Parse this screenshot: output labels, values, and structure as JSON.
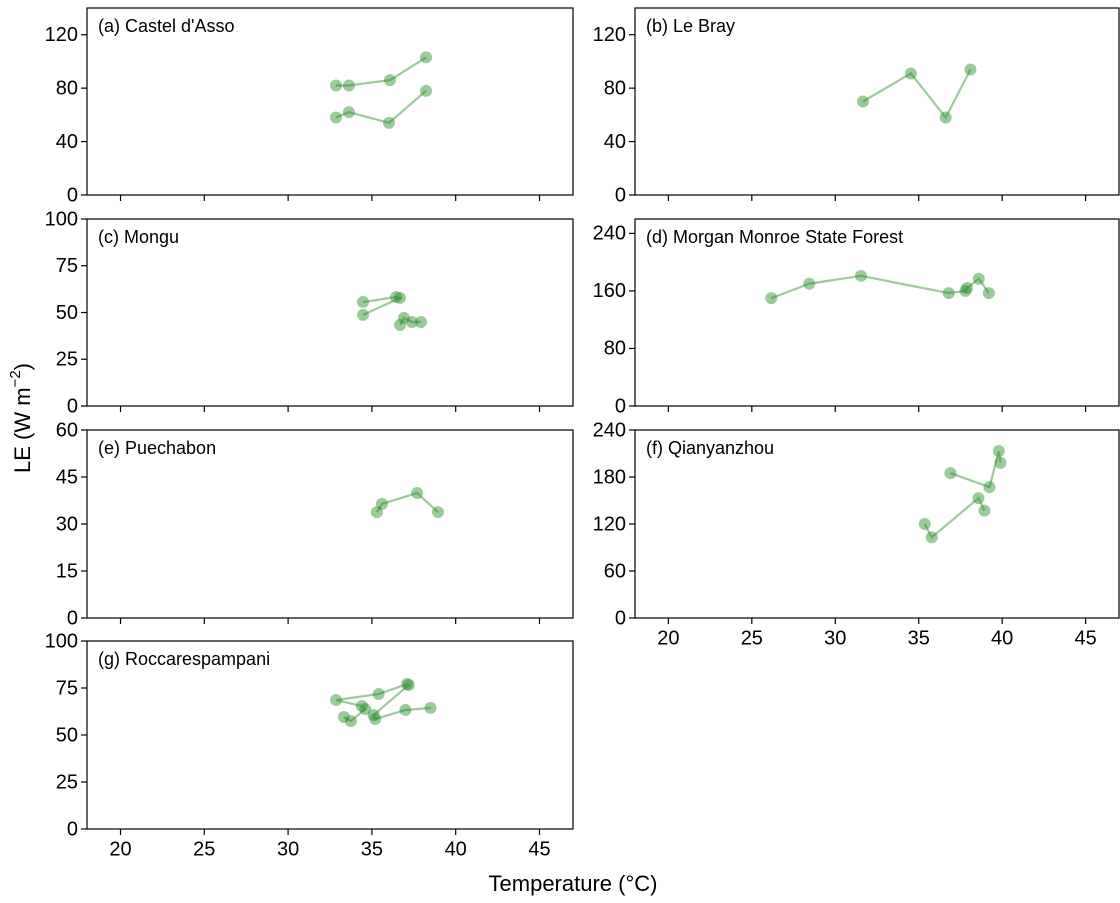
{
  "figure": {
    "xlabel": "Temperature (°C)",
    "ylabel": "LE (W m",
    "ylabel_exponent": "−2",
    "ylabel_end": ")"
  },
  "chart_data": [
    {
      "type": "line",
      "title": "(a) Castel d'Asso",
      "color": "#228b22",
      "show_xtick_labels": false,
      "x": [
        32.86,
        33.63,
        36.08,
        38.23,
        null,
        32.86,
        33.63,
        36.02,
        38.23
      ],
      "values": [
        82,
        82,
        86,
        103,
        null,
        58,
        62,
        54,
        78
      ],
      "xlim": [
        18,
        47
      ],
      "xticks": [
        20,
        25,
        30,
        35,
        40,
        45
      ],
      "ylim": [
        0,
        140
      ],
      "yticks": [
        0,
        40,
        80,
        120
      ]
    },
    {
      "type": "line",
      "title": "(b) Le Bray",
      "color": "#228b22",
      "show_xtick_labels": false,
      "x": [
        31.66,
        34.53,
        36.62,
        38.1
      ],
      "values": [
        70,
        91,
        58,
        94
      ],
      "xlim": [
        18,
        47
      ],
      "xticks": [
        20,
        25,
        30,
        35,
        40,
        45
      ],
      "ylim": [
        0,
        140
      ],
      "yticks": [
        0,
        40,
        80,
        120
      ]
    },
    {
      "type": "line",
      "title": "(c) Mongu",
      "color": "#228b22",
      "show_xtick_labels": false,
      "x": [
        34.47,
        36.44,
        36.68,
        34.47,
        null,
        36.68,
        36.91,
        37.39,
        37.93
      ],
      "values": [
        55.6,
        58.3,
        57.8,
        48.7,
        null,
        43.3,
        47.1,
        44.9,
        44.9
      ],
      "xlim": [
        18,
        47
      ],
      "xticks": [
        20,
        25,
        30,
        35,
        40,
        45
      ],
      "ylim": [
        0,
        100
      ],
      "yticks": [
        0,
        25,
        50,
        75,
        100
      ]
    },
    {
      "type": "line",
      "title": "(d) Morgan Monroe State Forest",
      "color": "#228b22",
      "show_xtick_labels": false,
      "x": [
        26.17,
        28.44,
        31.54,
        36.8,
        37.8,
        37.9,
        38.6,
        39.2
      ],
      "values": [
        150,
        170,
        181,
        157,
        160,
        164,
        177,
        157
      ],
      "xlim": [
        18,
        47
      ],
      "xticks": [
        20,
        25,
        30,
        35,
        40,
        45
      ],
      "ylim": [
        0,
        260
      ],
      "yticks": [
        0,
        80,
        160,
        240
      ]
    },
    {
      "type": "line",
      "title": "(e) Puechabon",
      "color": "#228b22",
      "show_xtick_labels": false,
      "x": [
        35.3,
        35.6,
        37.7,
        38.94
      ],
      "values": [
        33.8,
        36.4,
        39.9,
        33.8
      ],
      "xlim": [
        18,
        47
      ],
      "xticks": [
        20,
        25,
        30,
        35,
        40,
        45
      ],
      "ylim": [
        0,
        60
      ],
      "yticks": [
        0,
        15,
        30,
        45,
        60
      ]
    },
    {
      "type": "line",
      "title": "(f) Qianyanzhou",
      "color": "#228b22",
      "show_xtick_labels": true,
      "x": [
        35.36,
        35.78,
        38.58,
        38.94,
        null,
        36.9,
        39.24,
        39.8,
        39.9
      ],
      "values": [
        120,
        103,
        153,
        137,
        null,
        185,
        167,
        213,
        198
      ],
      "xlim": [
        18,
        47
      ],
      "xticks": [
        20,
        25,
        30,
        35,
        40,
        45
      ],
      "ylim": [
        0,
        240
      ],
      "yticks": [
        0,
        60,
        120,
        180,
        240
      ]
    },
    {
      "type": "line",
      "title": "(g) Roccarespampani",
      "color": "#228b22",
      "show_xtick_labels": true,
      "x": [
        33.33,
        33.75,
        34.6,
        34.4,
        32.86,
        35.4,
        37.1,
        37.2,
        35.1,
        35.2,
        37.0,
        38.5
      ],
      "values": [
        59.6,
        57.4,
        63.8,
        65.4,
        68.6,
        71.8,
        77.1,
        76.6,
        60.6,
        58.5,
        63.3,
        64.4
      ],
      "xlim": [
        18,
        47
      ],
      "xticks": [
        20,
        25,
        30,
        35,
        40,
        45
      ],
      "ylim": [
        0,
        100
      ],
      "yticks": [
        0,
        25,
        50,
        75,
        100
      ]
    }
  ]
}
